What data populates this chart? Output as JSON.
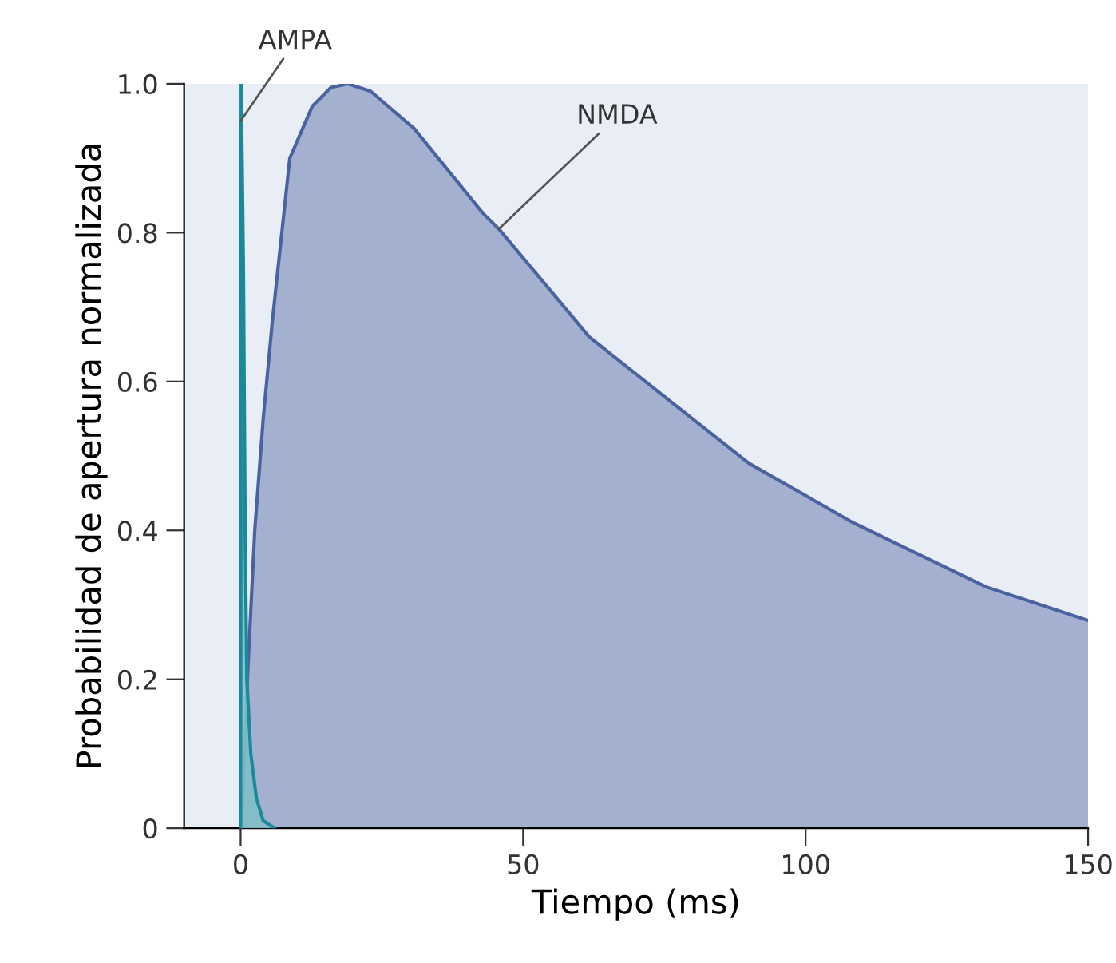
{
  "chart_data": {
    "type": "area",
    "xlabel": "Tiempo (ms)",
    "ylabel": "Probabilidad de apertura normalizada",
    "series": [
      {
        "color": "#4a63a0",
        "x": [
          0,
          0.5,
          1.2,
          2.5,
          4,
          5.6,
          8.7,
          12.7,
          16,
          19,
          23,
          30.7,
          42.9,
          45.7,
          61.7,
          75.8,
          90,
          108.5,
          132,
          150
        ],
        "values": [
          0,
          0.05,
          0.2,
          0.4,
          0.55,
          0.68,
          0.9,
          0.97,
          0.995,
          1.0,
          0.99,
          0.94,
          0.826,
          0.805,
          0.66,
          0.575,
          0.49,
          0.41,
          0.324,
          0.279
        ]
      },
      {
        "color": "#1a8a9a",
        "x": [
          0,
          0.1,
          0.5,
          0.8,
          1.1,
          1.8,
          2.8,
          4,
          6
        ],
        "values": [
          0,
          1.0,
          0.75,
          0.4,
          0.2,
          0.1,
          0.04,
          0.01,
          0
        ]
      }
    ],
    "annotations": [
      {
        "text": "AMPA",
        "x": 0,
        "y": 0.95
      },
      {
        "text": "NMDA",
        "x": 45.7,
        "y": 0.805
      }
    ],
    "xlim": [
      -10,
      150
    ],
    "ylim": [
      0,
      1.0
    ],
    "xticks": [
      0,
      50,
      100,
      150
    ],
    "yticks": [
      0,
      0.2,
      0.4,
      0.6,
      0.8,
      {
        "value": 1.0,
        "label": "1.0"
      }
    ],
    "grid": false,
    "legend": false
  }
}
